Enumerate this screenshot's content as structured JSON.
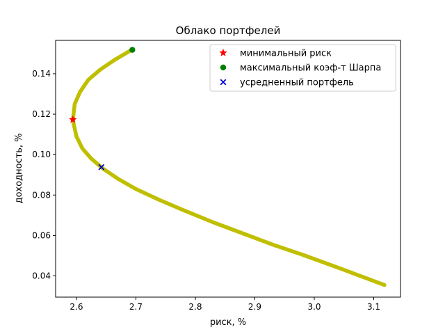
{
  "chart_data": {
    "type": "line",
    "title": "Облако портфелей",
    "xlabel": "риск, %",
    "ylabel": "доходность, %",
    "xlim": [
      2.565,
      3.145
    ],
    "ylim": [
      0.0295,
      0.1565
    ],
    "xticks": [
      2.6,
      2.7,
      2.8,
      2.9,
      3.0,
      3.1
    ],
    "xtick_labels": [
      "2.6",
      "2.7",
      "2.8",
      "2.9",
      "3.0",
      "3.1"
    ],
    "yticks": [
      0.04,
      0.06,
      0.08,
      0.1,
      0.12,
      0.14
    ],
    "ytick_labels": [
      "0.04",
      "0.06",
      "0.08",
      "0.10",
      "0.12",
      "0.14"
    ],
    "grid": false,
    "frontier": {
      "color": "#bfbf00",
      "x": [
        3.118,
        3.05,
        2.98,
        2.93,
        2.88,
        2.83,
        2.78,
        2.74,
        2.7,
        2.67,
        2.645,
        2.625,
        2.61,
        2.6,
        2.594,
        2.597,
        2.606,
        2.62,
        2.64,
        2.665,
        2.694
      ],
      "y": [
        0.0355,
        0.043,
        0.0505,
        0.0555,
        0.061,
        0.0665,
        0.0725,
        0.0775,
        0.083,
        0.088,
        0.093,
        0.098,
        0.103,
        0.109,
        0.117,
        0.125,
        0.131,
        0.137,
        0.142,
        0.147,
        0.152
      ]
    },
    "markers": [
      {
        "name": "минимальный риск",
        "x": 2.594,
        "y": 0.1173,
        "symbol": "star",
        "color": "#ff0000"
      },
      {
        "name": "максимальный коэф-т Шарпа",
        "x": 2.694,
        "y": 0.1518,
        "symbol": "circle",
        "color": "#008000"
      },
      {
        "name": "усредненный портфель",
        "x": 2.642,
        "y": 0.0938,
        "symbol": "x",
        "color": "#0000cc"
      }
    ],
    "legend": {
      "placement": "top-right",
      "entries": [
        "минимальный риск",
        "максимальный коэф-т Шарпа",
        "усредненный портфель"
      ]
    }
  }
}
